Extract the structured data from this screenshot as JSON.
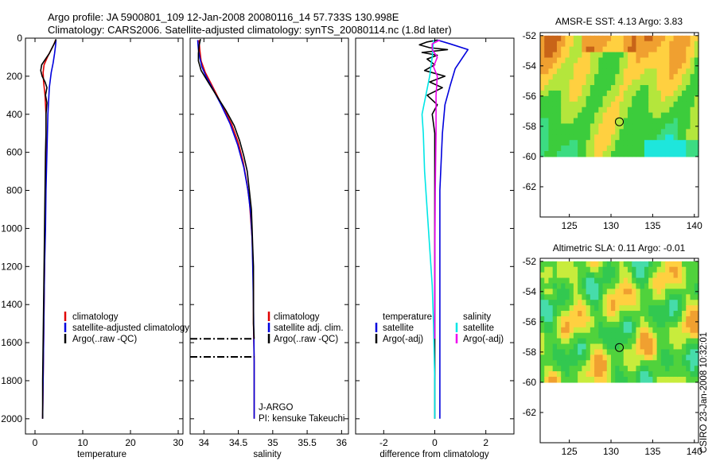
{
  "header": {
    "line1": "Argo profile: JA 5900801_109 12-Jan-2008 20080116_14 57.733S 130.998E",
    "line2": "Climatology: CARS2006. Satellite-adjusted climatology: synTS_20080114.nc (1.8d later)"
  },
  "watermark": "CSIRO 23-Jan-2008 10:32:01",
  "colors": {
    "climatology": "#e00000",
    "satellite": "#0000dd",
    "argo": "#000000",
    "sat_salinity": "#00e6e6",
    "argo_salinity": "#ee00ee"
  },
  "chart_data": [
    {
      "type": "line",
      "id": "temperature",
      "xlabel": "temperature",
      "ylabel": "",
      "xlim": [
        -2,
        31
      ],
      "ylim": [
        2080,
        0
      ],
      "xticks": [
        0,
        10,
        20,
        30
      ],
      "yticks": [
        0,
        200,
        400,
        600,
        800,
        1000,
        1200,
        1400,
        1600,
        1800,
        2000
      ],
      "legend": {
        "placement": "lower-right",
        "entries": [
          "climatology",
          "satellite-adjusted climatology",
          "Argo(..raw -QC)"
        ]
      },
      "series": [
        {
          "name": "climatology",
          "color": "#e00000",
          "points": [
            [
              4.3,
              10
            ],
            [
              4.0,
              30
            ],
            [
              3.4,
              60
            ],
            [
              2.6,
              100
            ],
            [
              1.9,
              140
            ],
            [
              1.7,
              180
            ],
            [
              1.8,
              230
            ],
            [
              2.1,
              300
            ],
            [
              2.3,
              400
            ],
            [
              2.3,
              600
            ],
            [
              2.2,
              800
            ],
            [
              2.1,
              1000
            ],
            [
              2.0,
              1200
            ],
            [
              1.9,
              1400
            ],
            [
              1.8,
              1600
            ],
            [
              1.7,
              1800
            ],
            [
              1.6,
              2000
            ]
          ]
        },
        {
          "name": "satellite-adjusted climatology",
          "color": "#0000dd",
          "points": [
            [
              4.4,
              10
            ],
            [
              4.3,
              40
            ],
            [
              4.1,
              80
            ],
            [
              3.8,
              130
            ],
            [
              3.4,
              180
            ],
            [
              3.0,
              260
            ],
            [
              2.7,
              400
            ],
            [
              2.5,
              600
            ],
            [
              2.3,
              800
            ],
            [
              2.2,
              1000
            ],
            [
              2.0,
              1200
            ],
            [
              1.9,
              1400
            ],
            [
              1.8,
              1600
            ],
            [
              1.7,
              1800
            ],
            [
              1.6,
              2000
            ]
          ]
        },
        {
          "name": "Argo(..raw -QC)",
          "color": "#000000",
          "points": [
            [
              4.4,
              5
            ],
            [
              4.2,
              20
            ],
            [
              3.6,
              50
            ],
            [
              3.0,
              80
            ],
            [
              2.2,
              110
            ],
            [
              1.4,
              140
            ],
            [
              1.2,
              170
            ],
            [
              1.5,
              200
            ],
            [
              2.1,
              230
            ],
            [
              2.5,
              260
            ],
            [
              2.2,
              300
            ],
            [
              2.5,
              340
            ],
            [
              2.3,
              400
            ],
            [
              2.3,
              500
            ],
            [
              2.2,
              600
            ],
            [
              2.1,
              800
            ],
            [
              2.0,
              1000
            ],
            [
              1.9,
              1200
            ],
            [
              1.8,
              1400
            ],
            [
              1.7,
              1600
            ],
            [
              1.6,
              1800
            ],
            [
              1.6,
              2000
            ]
          ]
        }
      ]
    },
    {
      "type": "line",
      "id": "salinity",
      "xlabel": "salinity",
      "ylabel": "",
      "xlim": [
        33.8,
        36.1
      ],
      "ylim": [
        2080,
        0
      ],
      "xticks": [
        34,
        34.5,
        35,
        35.5,
        36
      ],
      "legend": {
        "placement": "lower-right",
        "entries": [
          "climatology",
          "satellite adj. clim.",
          "Argo(..raw -QC)"
        ]
      },
      "annotations": [
        "J-ARGO",
        "PI: kensuke Takeuchi"
      ],
      "dashdot_depths": [
        1580,
        1675
      ],
      "series": [
        {
          "name": "climatology",
          "color": "#e00000",
          "points": [
            [
              33.93,
              10
            ],
            [
              33.94,
              60
            ],
            [
              33.96,
              120
            ],
            [
              34.02,
              180
            ],
            [
              34.12,
              250
            ],
            [
              34.26,
              350
            ],
            [
              34.4,
              450
            ],
            [
              34.5,
              550
            ],
            [
              34.57,
              650
            ],
            [
              34.62,
              750
            ],
            [
              34.66,
              850
            ],
            [
              34.68,
              950
            ],
            [
              34.7,
              1050
            ],
            [
              34.71,
              1150
            ],
            [
              34.72,
              1300
            ],
            [
              34.72,
              1500
            ],
            [
              34.73,
              1700
            ],
            [
              34.73,
              2000
            ]
          ]
        },
        {
          "name": "satellite adj. clim.",
          "color": "#0000dd",
          "points": [
            [
              33.91,
              10
            ],
            [
              33.92,
              60
            ],
            [
              33.94,
              100
            ],
            [
              33.97,
              150
            ],
            [
              34.03,
              200
            ],
            [
              34.12,
              260
            ],
            [
              34.25,
              350
            ],
            [
              34.38,
              450
            ],
            [
              34.49,
              560
            ],
            [
              34.58,
              680
            ],
            [
              34.64,
              800
            ],
            [
              34.68,
              920
            ],
            [
              34.7,
              1050
            ],
            [
              34.71,
              1200
            ],
            [
              34.72,
              1400
            ],
            [
              34.73,
              1700
            ],
            [
              34.73,
              2000
            ]
          ]
        },
        {
          "name": "Argo(..raw -QC)",
          "color": "#000000",
          "points": [
            [
              33.95,
              5
            ],
            [
              33.93,
              40
            ],
            [
              33.92,
              80
            ],
            [
              33.92,
              120
            ],
            [
              33.96,
              170
            ],
            [
              34.06,
              230
            ],
            [
              34.18,
              300
            ],
            [
              34.32,
              380
            ],
            [
              34.44,
              460
            ],
            [
              34.52,
              540
            ],
            [
              34.58,
              620
            ],
            [
              34.63,
              700
            ],
            [
              34.66,
              800
            ],
            [
              34.69,
              900
            ],
            [
              34.7,
              1000
            ],
            [
              34.71,
              1100
            ],
            [
              34.72,
              1200
            ],
            [
              34.72,
              1300
            ],
            [
              34.72,
              1400
            ],
            [
              34.72,
              1500
            ],
            [
              34.73,
              1580
            ]
          ]
        }
      ]
    },
    {
      "type": "line",
      "id": "difference",
      "xlabel": "difference from climatology",
      "ylabel": "",
      "xlim": [
        -3.1,
        3.1
      ],
      "ylim": [
        2080,
        0
      ],
      "xticks": [
        -2,
        0,
        2
      ],
      "legend": {
        "placement": "lower-center",
        "headers": [
          "temperature",
          "salinity"
        ],
        "entries": [
          "satellite",
          "Argo(-adj)",
          "satellite",
          "Argo(-adj)"
        ]
      },
      "series": [
        {
          "name": "temperature satellite",
          "color": "#0000dd",
          "points": [
            [
              0.1,
              10
            ],
            [
              0.6,
              30
            ],
            [
              1.3,
              60
            ],
            [
              1.1,
              100
            ],
            [
              0.8,
              160
            ],
            [
              0.6,
              250
            ],
            [
              0.4,
              350
            ],
            [
              0.3,
              500
            ],
            [
              0.2,
              800
            ],
            [
              0.2,
              1200
            ],
            [
              0.2,
              1600
            ],
            [
              0.2,
              2000
            ]
          ]
        },
        {
          "name": "temperature Argo(-adj)",
          "color": "#000000",
          "points": [
            [
              0.1,
              10
            ],
            [
              -0.3,
              20
            ],
            [
              -0.6,
              35
            ],
            [
              -0.2,
              50
            ],
            [
              0.5,
              60
            ],
            [
              -0.5,
              75
            ],
            [
              0.1,
              90
            ],
            [
              -0.3,
              110
            ],
            [
              0.0,
              140
            ],
            [
              -0.4,
              170
            ],
            [
              0.4,
              200
            ],
            [
              -0.2,
              230
            ],
            [
              0.3,
              260
            ],
            [
              -0.3,
              300
            ],
            [
              0.1,
              350
            ],
            [
              -0.1,
              400
            ],
            [
              0.0,
              500
            ],
            [
              0.0,
              800
            ],
            [
              0.0,
              1200
            ],
            [
              0.0,
              1600
            ],
            [
              0.0,
              2000
            ]
          ]
        },
        {
          "name": "salinity satellite",
          "color": "#00e6e6",
          "points": [
            [
              -0.05,
              10
            ],
            [
              -0.1,
              100
            ],
            [
              -0.2,
              200
            ],
            [
              -0.35,
              300
            ],
            [
              -0.5,
              400
            ],
            [
              -0.45,
              500
            ],
            [
              -0.4,
              700
            ],
            [
              -0.3,
              900
            ],
            [
              -0.2,
              1100
            ],
            [
              -0.1,
              1300
            ],
            [
              -0.05,
              1500
            ],
            [
              0.0,
              1800
            ],
            [
              0.0,
              2000
            ]
          ]
        },
        {
          "name": "salinity Argo(-adj)",
          "color": "#ee00ee",
          "points": [
            [
              0.2,
              10
            ],
            [
              -0.1,
              30
            ],
            [
              -0.1,
              60
            ],
            [
              0.1,
              100
            ],
            [
              -0.05,
              150
            ],
            [
              0.1,
              200
            ],
            [
              0.05,
              300
            ],
            [
              0.05,
              500
            ],
            [
              0.02,
              800
            ],
            [
              0.0,
              1200
            ],
            [
              0.0,
              1580
            ]
          ]
        }
      ]
    },
    {
      "type": "heatmap",
      "id": "amsre_sst",
      "title": "AMSR-E SST: 4.13 Argo: 3.83",
      "xlim": [
        121.5,
        140.5
      ],
      "ylim": [
        -64,
        -51.8
      ],
      "xticks": [
        125,
        130,
        135,
        140
      ],
      "yticks": [
        -52,
        -54,
        -56,
        -58,
        -60,
        -62
      ],
      "data_extent_lat": [
        -60,
        -52
      ],
      "marker": {
        "lon": 131.0,
        "lat": -57.7
      }
    },
    {
      "type": "heatmap",
      "id": "altimetric_sla",
      "title": "Altimetric SLA: 0.11 Argo: -0.01",
      "xlim": [
        121.5,
        140.5
      ],
      "ylim": [
        -64,
        -51.8
      ],
      "xticks": [
        125,
        130,
        135,
        140
      ],
      "yticks": [
        -52,
        -54,
        -56,
        -58,
        -60,
        -62
      ],
      "data_extent_lat": [
        -60,
        -52
      ],
      "marker": {
        "lon": 131.0,
        "lat": -57.7
      }
    }
  ]
}
